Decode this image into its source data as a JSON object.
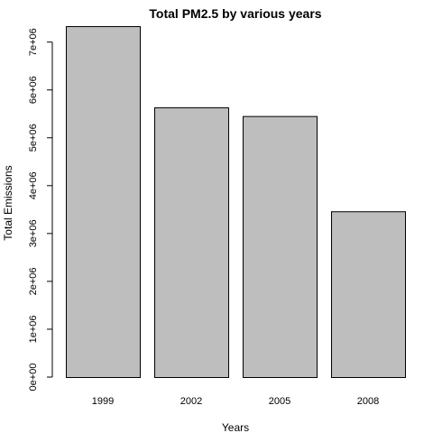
{
  "chart_data": {
    "type": "bar",
    "title": "Total PM2.5 by various years",
    "xlabel": "Years",
    "ylabel": "Total Emissions",
    "categories": [
      "1999",
      "2002",
      "2005",
      "2008"
    ],
    "values": [
      7332967,
      5635780,
      5454703,
      3464206
    ],
    "ylim": [
      0,
      7400000
    ],
    "yticks": [
      0,
      1000000,
      2000000,
      3000000,
      4000000,
      5000000,
      6000000,
      7000000
    ],
    "ytick_labels": [
      "0e+00",
      "1e+06",
      "2e+06",
      "3e+06",
      "4e+06",
      "5e+06",
      "6e+06",
      "7e+06"
    ],
    "bar_color": "#bebebe",
    "grid": false,
    "legend": "none"
  }
}
